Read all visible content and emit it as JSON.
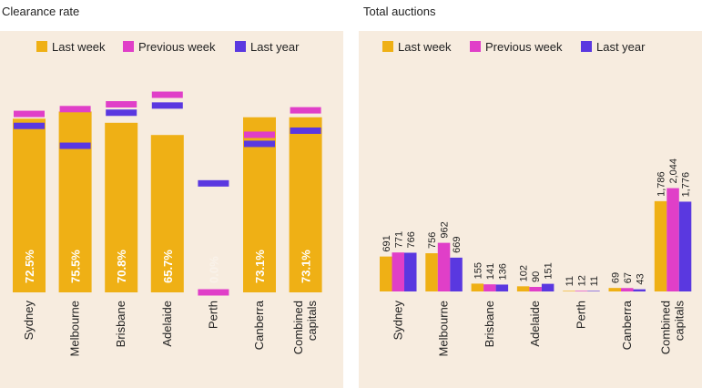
{
  "colors": {
    "last_week": "#efb015",
    "previous_week": "#e03fc8",
    "last_year": "#5a38e0",
    "panel_bg": "#f7ecdf"
  },
  "chart_data": [
    {
      "type": "bar",
      "title": "Clearance rate",
      "legend": [
        "Last week",
        "Previous week",
        "Last year"
      ],
      "legend_position": "top",
      "categories": [
        "Sydney",
        "Melbourne",
        "Brisbane",
        "Adelaide",
        "Perth",
        "Canberra",
        "Combined capitals"
      ],
      "category_lines": [
        [
          "Sydney"
        ],
        [
          "Melbourne"
        ],
        [
          "Brisbane"
        ],
        [
          "Adelaide"
        ],
        [
          "Perth"
        ],
        [
          "Canberra"
        ],
        [
          "Combined",
          "capitals"
        ]
      ],
      "series": [
        {
          "name": "Last week",
          "values": [
            72.5,
            75.5,
            70.8,
            65.7,
            0.0,
            73.1,
            73.1
          ]
        },
        {
          "name": "Previous week",
          "values": [
            74.5,
            76.5,
            78.5,
            82.5,
            0.0,
            65.8,
            76.0
          ]
        },
        {
          "name": "Last year",
          "values": [
            69.5,
            61.2,
            75.0,
            78.0,
            45.5,
            62.0,
            67.5
          ]
        }
      ],
      "data_labels": [
        "72.5%",
        "75.5%",
        "70.8%",
        "65.7%",
        "0.0%",
        "73.1%",
        "73.1%"
      ],
      "ylim": [
        0,
        100
      ]
    },
    {
      "type": "bar",
      "title": "Total auctions",
      "legend": [
        "Last week",
        "Previous week",
        "Last year"
      ],
      "legend_position": "top",
      "categories": [
        "Sydney",
        "Melbourne",
        "Brisbane",
        "Adelaide",
        "Perth",
        "Canberra",
        "Combined capitals"
      ],
      "category_lines": [
        [
          "Sydney"
        ],
        [
          "Melbourne"
        ],
        [
          "Brisbane"
        ],
        [
          "Adelaide"
        ],
        [
          "Perth"
        ],
        [
          "Canberra"
        ],
        [
          "Combined",
          "capitals"
        ]
      ],
      "series": [
        {
          "name": "Last week",
          "values": [
            691,
            756,
            155,
            102,
            11,
            69,
            1786
          ]
        },
        {
          "name": "Previous week",
          "values": [
            771,
            962,
            141,
            90,
            12,
            67,
            2044
          ]
        },
        {
          "name": "Last year",
          "values": [
            766,
            669,
            136,
            151,
            11,
            43,
            1776
          ]
        }
      ],
      "value_labels": [
        [
          "691",
          "756",
          "155",
          "102",
          "11",
          "69",
          "1,786"
        ],
        [
          "771",
          "962",
          "141",
          "90",
          "12",
          "67",
          "2,044"
        ],
        [
          "766",
          "669",
          "136",
          "151",
          "11",
          "43",
          "1,776"
        ]
      ],
      "ylim": [
        0,
        5150
      ]
    }
  ]
}
